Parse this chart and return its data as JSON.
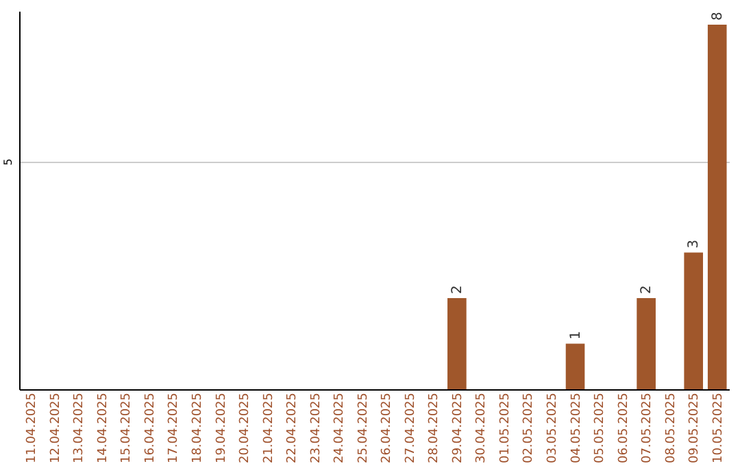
{
  "chart_data": {
    "type": "bar",
    "categories": [
      "11.04.2025",
      "12.04.2025",
      "13.04.2025",
      "14.04.2025",
      "15.04.2025",
      "16.04.2025",
      "17.04.2025",
      "18.04.2025",
      "19.04.2025",
      "20.04.2025",
      "21.04.2025",
      "22.04.2025",
      "23.04.2025",
      "24.04.2025",
      "25.04.2025",
      "26.04.2025",
      "27.04.2025",
      "28.04.2025",
      "29.04.2025",
      "30.04.2025",
      "01.05.2025",
      "02.05.2025",
      "03.05.2025",
      "04.05.2025",
      "05.05.2025",
      "06.05.2025",
      "07.05.2025",
      "08.05.2025",
      "09.05.2025",
      "10.05.2025"
    ],
    "values": [
      null,
      null,
      null,
      null,
      null,
      null,
      null,
      null,
      null,
      null,
      null,
      null,
      null,
      null,
      null,
      null,
      null,
      null,
      2,
      null,
      null,
      null,
      null,
      1,
      null,
      null,
      2,
      null,
      3,
      8
    ],
    "color": "#a0572b",
    "ylim": [
      0,
      8.3
    ],
    "yticks": [
      5
    ],
    "grid": "y",
    "data_labels": true
  }
}
